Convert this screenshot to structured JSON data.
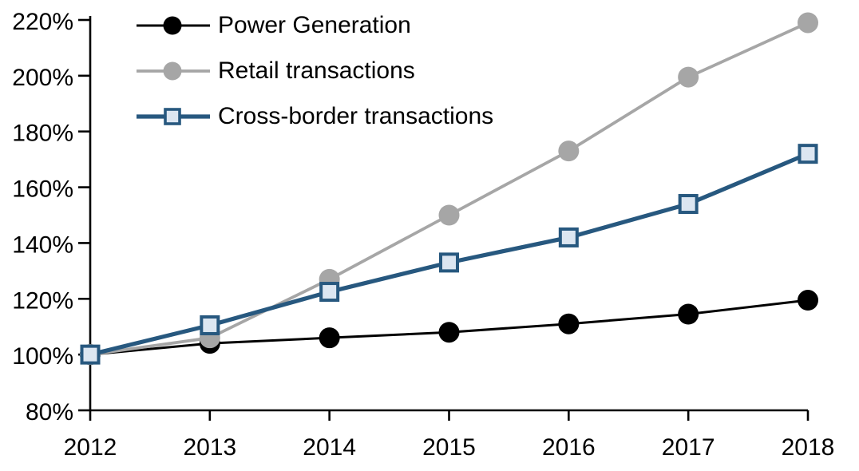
{
  "chart_data": {
    "type": "line",
    "x": [
      "2012",
      "2013",
      "2014",
      "2015",
      "2016",
      "2017",
      "2018"
    ],
    "series": [
      {
        "name": "Power Generation",
        "color": "#000000",
        "marker": "circle",
        "marker_fill": "#000000",
        "line_width": 3,
        "values": [
          100,
          104,
          106,
          108,
          111,
          114.5,
          119.5
        ]
      },
      {
        "name": "Retail transactions",
        "color": "#a6a6a6",
        "marker": "circle",
        "marker_fill": "#a6a6a6",
        "line_width": 3.8,
        "values": [
          100,
          106,
          127,
          150,
          173,
          199.5,
          219
        ]
      },
      {
        "name": "Cross-border transactions",
        "color": "#27587f",
        "marker": "square",
        "marker_fill": "#dce6f1",
        "line_width": 5.2,
        "values": [
          100,
          110.5,
          122.5,
          133,
          142,
          154,
          172
        ]
      }
    ],
    "ytick_values": [
      220,
      200,
      180,
      160,
      140,
      120,
      100,
      80
    ],
    "ytick_labels": [
      "220%",
      "200%",
      "180%",
      "160%",
      "140%",
      "120%",
      "100%",
      "80%"
    ],
    "ylim": [
      80,
      220
    ],
    "xlabel": "",
    "ylabel": "",
    "grid": false,
    "legend_position": "top-left",
    "axis_color": "#000000",
    "text_color": "#000000"
  }
}
